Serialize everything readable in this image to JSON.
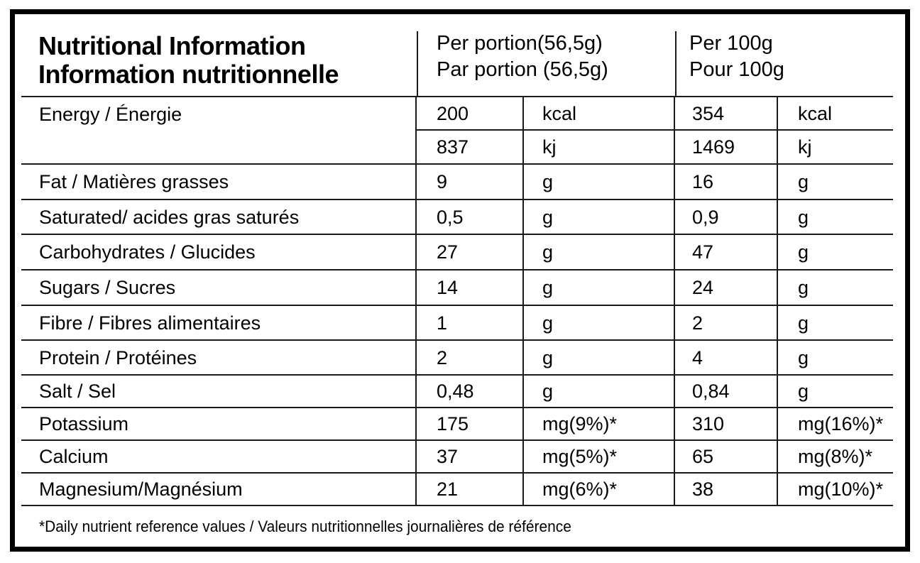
{
  "header": {
    "title_en": "Nutritional Information",
    "title_fr": "Information nutritionnelle",
    "per_portion_en": "Per portion(56,5g)",
    "per_portion_fr": "Par portion (56,5g)",
    "per_100g_en": "Per 100g",
    "per_100g_fr": "Pour 100g"
  },
  "energy": {
    "label": "Energy / Énergie",
    "lines": [
      {
        "portion_value": "200",
        "portion_unit": "kcal",
        "per100g_value": "354",
        "per100g_unit": "kcal"
      },
      {
        "portion_value": "837",
        "portion_unit": "kj",
        "per100g_value": "1469",
        "per100g_unit": "kj"
      }
    ]
  },
  "rows": [
    {
      "label": "Fat / Matières grasses",
      "portion_value": "9",
      "portion_unit": "g",
      "per100g_value": "16",
      "per100g_unit": "g"
    },
    {
      "label": "Saturated/ acides gras saturés",
      "portion_value": "0,5",
      "portion_unit": "g",
      "per100g_value": "0,9",
      "per100g_unit": "g"
    },
    {
      "label": "Carbohydrates / Glucides",
      "portion_value": "27",
      "portion_unit": "g",
      "per100g_value": "47",
      "per100g_unit": "g"
    },
    {
      "label": "Sugars / Sucres",
      "portion_value": "14",
      "portion_unit": "g",
      "per100g_value": "24",
      "per100g_unit": "g"
    },
    {
      "label": "Fibre / Fibres alimentaires",
      "portion_value": "1",
      "portion_unit": "g",
      "per100g_value": "2",
      "per100g_unit": "g"
    },
    {
      "label": "Protein / Protéines",
      "portion_value": "2",
      "portion_unit": "g",
      "per100g_value": "4",
      "per100g_unit": "g"
    },
    {
      "label": "Salt / Sel",
      "portion_value": "0,48",
      "portion_unit": "g",
      "per100g_value": "0,84",
      "per100g_unit": "g"
    },
    {
      "label": "Potassium",
      "portion_value": "175",
      "portion_unit": "mg(9%)*",
      "per100g_value": "310",
      "per100g_unit": "mg(16%)*"
    },
    {
      "label": "Calcium",
      "portion_value": "37",
      "portion_unit": "mg(5%)*",
      "per100g_value": "65",
      "per100g_unit": "mg(8%)*"
    },
    {
      "label": "Magnesium/Magnésium",
      "portion_value": "21",
      "portion_unit": "mg(6%)*",
      "per100g_value": "38",
      "per100g_unit": "mg(10%)*"
    }
  ],
  "footer": {
    "note": "*Daily nutrient reference values / Valeurs nutritionnelles journalières de référence"
  },
  "colors": {
    "text": "#000000",
    "border": "#1a1a1a",
    "background": "#ffffff"
  }
}
